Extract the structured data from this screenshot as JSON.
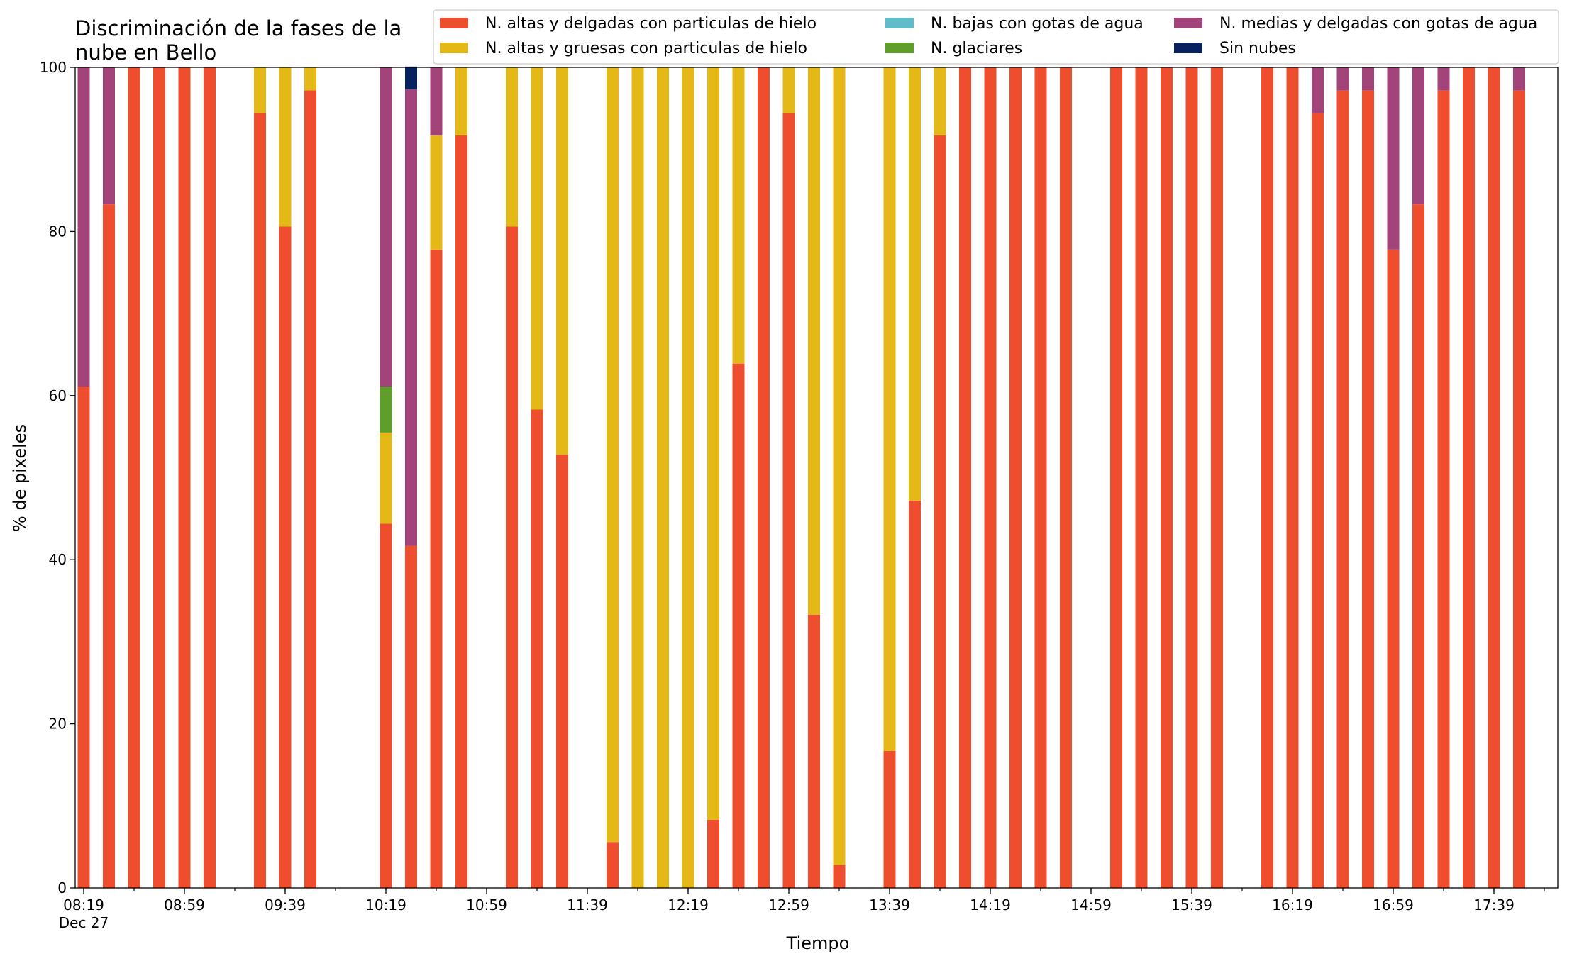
{
  "chart_data": {
    "type": "bar",
    "stacked": true,
    "title_lines": [
      "Discriminación de la fases de la",
      "nube en Bello"
    ],
    "xlabel": "Tiempo",
    "ylabel": "% de pixeles",
    "ylim": [
      0,
      100
    ],
    "yticks": [
      0,
      20,
      40,
      60,
      80,
      100
    ],
    "grid": false,
    "legend_placement": "top-right",
    "x_start": "08:19",
    "x_step_minutes": 10,
    "x_end": "17:59",
    "xtick_labels": [
      "08:19",
      "08:59",
      "09:39",
      "10:19",
      "10:59",
      "11:39",
      "12:19",
      "12:59",
      "13:39",
      "14:19",
      "14:59",
      "15:39",
      "16:19",
      "16:59",
      "17:39"
    ],
    "xtick_date": "Dec 27",
    "series": [
      {
        "name": "N. altas y delgadas con particulas de hielo",
        "color": "#ee4d2e"
      },
      {
        "name": "N. altas y gruesas con particulas de hielo",
        "color": "#e4b817"
      },
      {
        "name": "N. bajas con gotas de agua",
        "color": "#60bcc7"
      },
      {
        "name": "N. glaciares",
        "color": "#5f9e2a"
      },
      {
        "name": "N. medias y delgadas con gotas de agua",
        "color": "#a2447a"
      },
      {
        "name": "Sin nubes",
        "color": "#06215e"
      }
    ],
    "bars": [
      {
        "time": "08:19",
        "values": [
          61.1,
          0,
          0,
          0,
          38.9,
          0
        ]
      },
      {
        "time": "08:29",
        "values": [
          83.3,
          0,
          0,
          0,
          16.7,
          0
        ]
      },
      {
        "time": "08:39",
        "values": [
          100,
          0,
          0,
          0,
          0,
          0
        ]
      },
      {
        "time": "08:49",
        "values": [
          100,
          0,
          0,
          0,
          0,
          0
        ]
      },
      {
        "time": "08:59",
        "values": [
          100,
          0,
          0,
          0,
          0,
          0
        ]
      },
      {
        "time": "09:09",
        "values": [
          100,
          0,
          0,
          0,
          0,
          0
        ]
      },
      {
        "time": "09:29",
        "values": [
          94.4,
          5.6,
          0,
          0,
          0,
          0
        ]
      },
      {
        "time": "09:39",
        "values": [
          80.6,
          19.4,
          0,
          0,
          0,
          0
        ]
      },
      {
        "time": "09:49",
        "values": [
          97.2,
          2.8,
          0,
          0,
          0,
          0
        ]
      },
      {
        "time": "10:19",
        "values": [
          44.4,
          11.1,
          0,
          5.6,
          38.9,
          0
        ]
      },
      {
        "time": "10:29",
        "values": [
          41.7,
          0,
          0,
          0,
          55.6,
          2.8
        ]
      },
      {
        "time": "10:39",
        "values": [
          77.8,
          13.9,
          0,
          0,
          8.3,
          0
        ]
      },
      {
        "time": "10:49",
        "values": [
          91.7,
          8.3,
          0,
          0,
          0,
          0
        ]
      },
      {
        "time": "11:09",
        "values": [
          80.6,
          19.4,
          0,
          0,
          0,
          0
        ]
      },
      {
        "time": "11:19",
        "values": [
          58.3,
          41.7,
          0,
          0,
          0,
          0
        ]
      },
      {
        "time": "11:29",
        "values": [
          52.8,
          47.2,
          0,
          0,
          0,
          0
        ]
      },
      {
        "time": "11:49",
        "values": [
          5.6,
          94.4,
          0,
          0,
          0,
          0
        ]
      },
      {
        "time": "11:59",
        "values": [
          0,
          100,
          0,
          0,
          0,
          0
        ]
      },
      {
        "time": "12:09",
        "values": [
          0,
          100,
          0,
          0,
          0,
          0
        ]
      },
      {
        "time": "12:19",
        "values": [
          0,
          100,
          0,
          0,
          0,
          0
        ]
      },
      {
        "time": "12:29",
        "values": [
          8.3,
          91.7,
          0,
          0,
          0,
          0
        ]
      },
      {
        "time": "12:39",
        "values": [
          63.9,
          36.1,
          0,
          0,
          0,
          0
        ]
      },
      {
        "time": "12:49",
        "values": [
          100,
          0,
          0,
          0,
          0,
          0
        ]
      },
      {
        "time": "12:59",
        "values": [
          94.4,
          5.6,
          0,
          0,
          0,
          0
        ]
      },
      {
        "time": "13:09",
        "values": [
          33.3,
          66.7,
          0,
          0,
          0,
          0
        ]
      },
      {
        "time": "13:19",
        "values": [
          2.8,
          97.2,
          0,
          0,
          0,
          0
        ]
      },
      {
        "time": "13:39",
        "values": [
          16.7,
          83.3,
          0,
          0,
          0,
          0
        ]
      },
      {
        "time": "13:49",
        "values": [
          47.2,
          52.8,
          0,
          0,
          0,
          0
        ]
      },
      {
        "time": "13:59",
        "values": [
          91.7,
          8.3,
          0,
          0,
          0,
          0
        ]
      },
      {
        "time": "14:09",
        "values": [
          100,
          0,
          0,
          0,
          0,
          0
        ]
      },
      {
        "time": "14:19",
        "values": [
          100,
          0,
          0,
          0,
          0,
          0
        ]
      },
      {
        "time": "14:29",
        "values": [
          100,
          0,
          0,
          0,
          0,
          0
        ]
      },
      {
        "time": "14:39",
        "values": [
          100,
          0,
          0,
          0,
          0,
          0
        ]
      },
      {
        "time": "14:49",
        "values": [
          100,
          0,
          0,
          0,
          0,
          0
        ]
      },
      {
        "time": "15:09",
        "values": [
          100,
          0,
          0,
          0,
          0,
          0
        ]
      },
      {
        "time": "15:19",
        "values": [
          100,
          0,
          0,
          0,
          0,
          0
        ]
      },
      {
        "time": "15:29",
        "values": [
          100,
          0,
          0,
          0,
          0,
          0
        ]
      },
      {
        "time": "15:39",
        "values": [
          100,
          0,
          0,
          0,
          0,
          0
        ]
      },
      {
        "time": "15:49",
        "values": [
          100,
          0,
          0,
          0,
          0,
          0
        ]
      },
      {
        "time": "16:09",
        "values": [
          100,
          0,
          0,
          0,
          0,
          0
        ]
      },
      {
        "time": "16:19",
        "values": [
          100,
          0,
          0,
          0,
          0,
          0
        ]
      },
      {
        "time": "16:29",
        "values": [
          94.4,
          0,
          0,
          0,
          5.6,
          0
        ]
      },
      {
        "time": "16:39",
        "values": [
          97.2,
          0,
          0,
          0,
          2.8,
          0
        ]
      },
      {
        "time": "16:49",
        "values": [
          97.2,
          0,
          0,
          0,
          2.8,
          0
        ]
      },
      {
        "time": "16:59",
        "values": [
          77.8,
          0,
          0,
          0,
          22.2,
          0
        ]
      },
      {
        "time": "17:09",
        "values": [
          83.3,
          0,
          0,
          0,
          16.7,
          0
        ]
      },
      {
        "time": "17:19",
        "values": [
          97.2,
          0,
          0,
          0,
          2.8,
          0
        ]
      },
      {
        "time": "17:29",
        "values": [
          100,
          0,
          0,
          0,
          0,
          0
        ]
      },
      {
        "time": "17:39",
        "values": [
          100,
          0,
          0,
          0,
          0,
          0
        ]
      },
      {
        "time": "17:49",
        "values": [
          97.2,
          0,
          0,
          0,
          2.8,
          0
        ]
      }
    ]
  }
}
